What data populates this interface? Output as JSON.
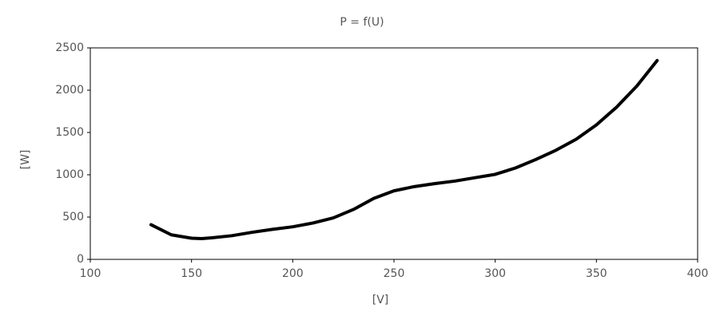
{
  "chart_data": {
    "type": "line",
    "title": "P = f(U)",
    "x_label": "[V]",
    "y_label": "[W]",
    "x": [
      130,
      140,
      150,
      155,
      160,
      170,
      180,
      190,
      200,
      210,
      220,
      230,
      240,
      250,
      260,
      270,
      280,
      290,
      300,
      310,
      320,
      330,
      340,
      350,
      360,
      370,
      380
    ],
    "series": [
      {
        "name": "P",
        "color": "#000000",
        "values": [
          410,
          290,
          250,
          245,
          255,
          280,
          320,
          355,
          385,
          430,
          490,
          590,
          720,
          810,
          860,
          895,
          925,
          965,
          1005,
          1080,
          1180,
          1290,
          1420,
          1590,
          1800,
          2050,
          2350
        ]
      }
    ],
    "xlim": [
      100,
      400
    ],
    "xticks": [
      100,
      150,
      200,
      250,
      300,
      350,
      400
    ],
    "ylim": [
      0,
      2500
    ],
    "yticks": [
      0,
      500,
      1000,
      1500,
      2000,
      2500
    ]
  }
}
